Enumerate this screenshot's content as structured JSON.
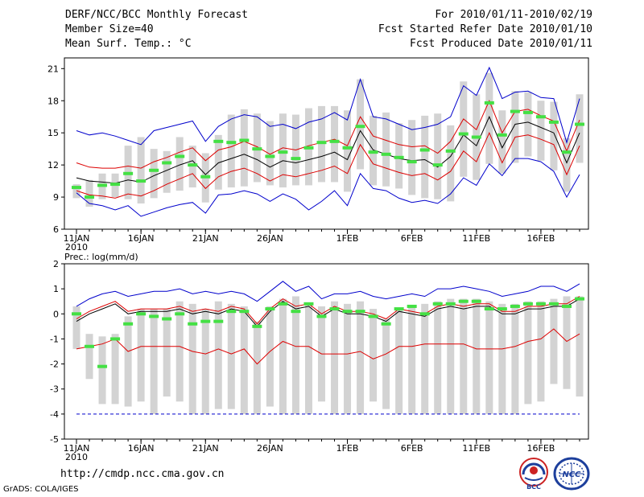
{
  "header": {
    "left": [
      "DERF/NCC/BCC Monthly Forecast",
      "Member Size=40",
      "Mean Surf. Temp.: °C"
    ],
    "right": [
      "For 2010/01/11-2010/02/19",
      "Fcst Started Refer Date 2010/01/10",
      "Fcst Produced Date 2010/01/11"
    ]
  },
  "footer": {
    "url": "http://cmdp.ncc.cma.gov.cn",
    "credit": "GrADS: COLA/IGES",
    "logo_bcc": "BCC",
    "logo_ncc": "NCC"
  },
  "colors": {
    "bar": "#d3d3d3",
    "obs": "#44e044",
    "mean": "#000000",
    "envelope": "#dd0000",
    "extreme": "#0000cc"
  },
  "chart_data": [
    {
      "type": "line",
      "title": "Mean Surf. Temp.: °C",
      "days": 40,
      "ylim": [
        6,
        22
      ],
      "yticks": [
        6,
        9,
        12,
        15,
        18,
        21
      ],
      "xtick_labels": [
        {
          "day": 1,
          "label": "11JAN",
          "sub": "2010"
        },
        {
          "day": 6,
          "label": "16JAN"
        },
        {
          "day": 11,
          "label": "21JAN"
        },
        {
          "day": 16,
          "label": "26JAN"
        },
        {
          "day": 22,
          "label": "1FEB"
        },
        {
          "day": 27,
          "label": "6FEB"
        },
        {
          "day": 32,
          "label": "11FEB"
        },
        {
          "day": 37,
          "label": "16FEB"
        }
      ],
      "series": [
        {
          "name": "ensemble_mean",
          "values": [
            10.8,
            10.5,
            10.4,
            10.3,
            10.6,
            10.4,
            11.0,
            11.5,
            12.0,
            12.4,
            11.1,
            12.2,
            12.6,
            13.0,
            12.5,
            11.8,
            12.4,
            12.2,
            12.5,
            12.8,
            13.2,
            12.5,
            15.2,
            13.4,
            13.0,
            12.6,
            12.4,
            12.5,
            11.8,
            12.8,
            14.8,
            13.8,
            16.5,
            13.6,
            15.8,
            16.0,
            15.5,
            15.0,
            12.2,
            15.0
          ]
        },
        {
          "name": "upper_sd",
          "values": [
            12.2,
            11.8,
            11.7,
            11.7,
            11.9,
            11.7,
            12.3,
            12.7,
            13.2,
            13.6,
            12.4,
            13.4,
            13.7,
            14.2,
            13.7,
            13.0,
            13.6,
            13.4,
            13.8,
            14.1,
            14.4,
            13.8,
            16.5,
            14.7,
            14.3,
            13.9,
            13.7,
            13.8,
            13.1,
            14.2,
            16.3,
            15.3,
            18.0,
            15.0,
            17.0,
            17.2,
            16.6,
            16.1,
            13.3,
            16.2
          ]
        },
        {
          "name": "lower_sd",
          "values": [
            9.6,
            9.2,
            9.1,
            8.9,
            9.3,
            9.1,
            9.6,
            10.2,
            10.7,
            11.2,
            9.8,
            10.9,
            11.4,
            11.7,
            11.2,
            10.5,
            11.1,
            10.9,
            11.2,
            11.5,
            11.9,
            11.2,
            13.9,
            12.1,
            11.7,
            11.3,
            11.0,
            11.2,
            10.6,
            11.4,
            13.3,
            12.3,
            15.0,
            12.2,
            14.6,
            14.8,
            14.4,
            13.9,
            11.1,
            13.8
          ]
        },
        {
          "name": "max_member",
          "values": [
            15.2,
            14.8,
            15.0,
            14.7,
            14.3,
            13.9,
            15.2,
            15.5,
            15.8,
            16.1,
            14.2,
            15.6,
            16.3,
            16.7,
            16.5,
            15.6,
            15.8,
            15.4,
            16.0,
            16.3,
            16.9,
            16.2,
            20.0,
            16.5,
            16.3,
            15.8,
            15.3,
            15.5,
            15.8,
            16.5,
            19.4,
            18.5,
            21.1,
            18.2,
            18.8,
            18.9,
            18.3,
            18.2,
            14.1,
            18.2
          ]
        },
        {
          "name": "min_member",
          "values": [
            9.4,
            8.4,
            8.2,
            7.8,
            8.2,
            7.2,
            7.6,
            8.0,
            8.3,
            8.5,
            7.5,
            9.2,
            9.3,
            9.6,
            9.3,
            8.6,
            9.3,
            8.8,
            7.8,
            8.6,
            9.6,
            8.2,
            11.2,
            9.8,
            9.6,
            8.9,
            8.5,
            8.7,
            8.4,
            9.3,
            10.8,
            10.1,
            12.1,
            11.0,
            12.6,
            12.6,
            12.3,
            11.4,
            9.0,
            11.1
          ]
        },
        {
          "name": "box_top",
          "values": [
            10.2,
            10.6,
            11.2,
            11.2,
            13.8,
            14.6,
            13.5,
            13.3,
            14.6,
            13.8,
            13.1,
            14.8,
            16.7,
            17.2,
            16.8,
            16.1,
            16.8,
            16.7,
            17.3,
            17.5,
            17.5,
            17.1,
            20.0,
            16.6,
            16.9,
            15.9,
            16.2,
            16.6,
            16.8,
            15.7,
            19.8,
            18.6,
            20.6,
            17.1,
            18.9,
            18.8,
            18.0,
            17.9,
            14.5,
            18.6
          ]
        },
        {
          "name": "box_bottom",
          "values": [
            8.9,
            8.1,
            8.8,
            9.0,
            8.8,
            8.4,
            8.9,
            9.4,
            9.6,
            9.9,
            8.5,
            9.7,
            9.9,
            10.0,
            10.4,
            10.1,
            9.9,
            10.1,
            10.1,
            10.4,
            10.4,
            9.5,
            11.6,
            10.1,
            10.0,
            9.8,
            9.2,
            8.9,
            8.8,
            8.6,
            10.9,
            10.6,
            12.1,
            11.2,
            12.2,
            12.8,
            12.4,
            11.5,
            9.5,
            12.2
          ]
        },
        {
          "name": "observed",
          "values": [
            9.9,
            9.0,
            10.1,
            10.2,
            11.2,
            10.5,
            11.5,
            12.2,
            12.8,
            12.0,
            10.9,
            14.2,
            14.1,
            14.3,
            13.5,
            12.8,
            13.2,
            12.6,
            13.6,
            14.1,
            14.2,
            13.6,
            15.6,
            13.2,
            13.0,
            12.7,
            12.3,
            13.4,
            12.0,
            13.3,
            14.9,
            14.6,
            17.8,
            14.8,
            17.0,
            16.9,
            16.5,
            16.0,
            13.2,
            15.8
          ]
        }
      ]
    },
    {
      "type": "line",
      "title": "Prec.: log(mm/d)",
      "days": 40,
      "ylim": [
        -5,
        2
      ],
      "yticks": [
        -5,
        -4,
        -3,
        -2,
        -1,
        0,
        1,
        2
      ],
      "xtick_labels": [
        {
          "day": 1,
          "label": "11JAN",
          "sub": "2010"
        },
        {
          "day": 6,
          "label": "16JAN"
        },
        {
          "day": 11,
          "label": "21JAN"
        },
        {
          "day": 16,
          "label": "26JAN"
        },
        {
          "day": 22,
          "label": "1FEB"
        },
        {
          "day": 27,
          "label": "6FEB"
        },
        {
          "day": 32,
          "label": "11FEB"
        },
        {
          "day": 37,
          "label": "16FEB"
        }
      ],
      "series": [
        {
          "name": "ensemble_mean",
          "values": [
            -0.3,
            0.0,
            0.2,
            0.4,
            0.0,
            0.1,
            0.1,
            0.1,
            0.2,
            0.0,
            0.1,
            0.0,
            0.2,
            0.1,
            -0.5,
            0.1,
            0.5,
            0.2,
            0.3,
            -0.1,
            0.2,
            0.0,
            0.0,
            -0.1,
            -0.3,
            0.1,
            0.0,
            -0.1,
            0.2,
            0.3,
            0.2,
            0.3,
            0.3,
            0.0,
            0.0,
            0.2,
            0.2,
            0.3,
            0.3,
            0.6
          ]
        },
        {
          "name": "upper_sd",
          "values": [
            -0.2,
            0.1,
            0.3,
            0.5,
            0.1,
            0.2,
            0.2,
            0.2,
            0.3,
            0.1,
            0.2,
            0.1,
            0.3,
            0.2,
            -0.4,
            0.2,
            0.6,
            0.3,
            0.4,
            0.0,
            0.3,
            0.1,
            0.1,
            0.0,
            -0.2,
            0.2,
            0.1,
            0.0,
            0.3,
            0.4,
            0.3,
            0.4,
            0.4,
            0.1,
            0.1,
            0.3,
            0.3,
            0.4,
            0.4,
            0.7
          ]
        },
        {
          "name": "lower_sd",
          "values": [
            -1.4,
            -1.3,
            -1.2,
            -1.0,
            -1.5,
            -1.3,
            -1.3,
            -1.3,
            -1.3,
            -1.5,
            -1.6,
            -1.4,
            -1.6,
            -1.4,
            -2.0,
            -1.5,
            -1.1,
            -1.3,
            -1.3,
            -1.6,
            -1.6,
            -1.6,
            -1.5,
            -1.8,
            -1.6,
            -1.3,
            -1.3,
            -1.2,
            -1.2,
            -1.2,
            -1.2,
            -1.4,
            -1.4,
            -1.4,
            -1.3,
            -1.1,
            -1.0,
            -0.6,
            -1.1,
            -0.8
          ]
        },
        {
          "name": "max_member",
          "values": [
            0.3,
            0.6,
            0.8,
            0.9,
            0.7,
            0.8,
            0.9,
            0.9,
            1.0,
            0.8,
            0.9,
            0.8,
            0.9,
            0.8,
            0.5,
            0.9,
            1.3,
            0.9,
            1.1,
            0.6,
            0.8,
            0.8,
            0.9,
            0.7,
            0.6,
            0.7,
            0.8,
            0.7,
            1.0,
            1.0,
            1.1,
            1.0,
            0.9,
            0.7,
            0.8,
            0.9,
            1.1,
            1.1,
            0.9,
            1.2
          ]
        },
        {
          "name": "box_top",
          "values": [
            0.3,
            -0.8,
            -0.9,
            -0.8,
            -0.1,
            0.2,
            0.2,
            0.2,
            0.5,
            0.4,
            0.2,
            0.5,
            0.4,
            0.3,
            -0.3,
            0.3,
            0.6,
            0.7,
            0.4,
            0.3,
            0.5,
            0.4,
            0.5,
            0.2,
            -0.2,
            0.2,
            0.3,
            0.4,
            0.5,
            0.6,
            0.6,
            0.6,
            0.5,
            0.4,
            0.4,
            0.5,
            0.5,
            0.6,
            0.7,
            0.7
          ]
        },
        {
          "name": "box_bottom",
          "values": [
            -1.4,
            -2.6,
            -3.6,
            -3.6,
            -3.7,
            -3.5,
            -4.0,
            -3.3,
            -3.5,
            -4.0,
            -4.0,
            -3.8,
            -3.8,
            -4.0,
            -4.0,
            -3.7,
            -4.0,
            -4.0,
            -4.0,
            -3.5,
            -4.0,
            -4.0,
            -4.0,
            -3.5,
            -3.8,
            -4.0,
            -4.0,
            -4.0,
            -4.0,
            -4.0,
            -4.0,
            -4.0,
            -4.0,
            -4.0,
            -4.0,
            -3.6,
            -3.5,
            -2.8,
            -3.0,
            -3.3
          ]
        },
        {
          "name": "observed",
          "values": [
            0.0,
            -1.3,
            -2.1,
            -1.0,
            -0.4,
            0.0,
            -0.1,
            -0.2,
            0.0,
            -0.4,
            -0.3,
            -0.3,
            0.1,
            0.1,
            -0.5,
            0.2,
            0.4,
            0.1,
            0.4,
            -0.1,
            0.2,
            0.1,
            0.1,
            -0.1,
            -0.4,
            0.2,
            0.3,
            0.0,
            0.4,
            0.4,
            0.5,
            0.5,
            0.2,
            0.2,
            0.3,
            0.4,
            0.4,
            0.4,
            0.3,
            0.6
          ]
        },
        {
          "name": "min_member",
          "values": [
            -4,
            -4,
            -4,
            -4,
            -4,
            -4,
            -4,
            -4,
            -4,
            -4,
            -4,
            -4,
            -4,
            -4,
            -4,
            -4,
            -4,
            -4,
            -4,
            -4,
            -4,
            -4,
            -4,
            -4,
            -4,
            -4,
            -4,
            -4,
            -4,
            -4,
            -4,
            -4,
            -4,
            -4,
            -4,
            -4,
            -4,
            -4,
            -4,
            -4
          ]
        }
      ]
    }
  ]
}
